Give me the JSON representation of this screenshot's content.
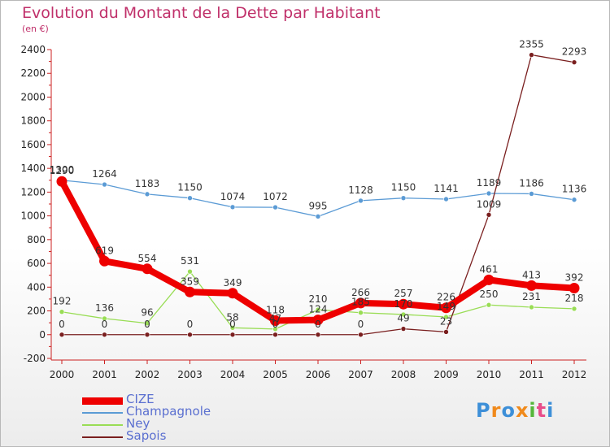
{
  "title": "Evolution du Montant de la Dette par Habitant",
  "subtitle": "(en €)",
  "logo_text": "Proxiti",
  "colors": {
    "title": "#c0306a",
    "axis": "#cc2222",
    "legend_text": "#5a6fd0"
  },
  "chart_data": {
    "type": "line",
    "title": "Evolution du Montant de la Dette par Habitant",
    "subtitle": "(en €)",
    "xlabel": "",
    "ylabel": "",
    "categories": [
      "2000",
      "2001",
      "2002",
      "2003",
      "2004",
      "2005",
      "2006",
      "2007",
      "2008",
      "2009",
      "2010",
      "2011",
      "2012"
    ],
    "ylim": [
      -200,
      2400
    ],
    "yticks": [
      -200,
      0,
      200,
      400,
      600,
      800,
      1000,
      1200,
      1400,
      1600,
      1800,
      2000,
      2200,
      2400
    ],
    "grid": false,
    "legend_position": "bottom-left",
    "series": [
      {
        "name": "CIZE",
        "color": "#ee0000",
        "values": [
          1290,
          619,
          554,
          359,
          349,
          118,
          124,
          266,
          257,
          226,
          461,
          413,
          392
        ],
        "labels": [
          "1290",
          "619",
          "554",
          "359",
          "349",
          "118",
          "124",
          "266",
          "257",
          "226",
          "461",
          "413",
          "392"
        ]
      },
      {
        "name": "Champagnole",
        "color": "#5b9bd5",
        "values": [
          1300,
          1264,
          1183,
          1150,
          1074,
          1072,
          995,
          1128,
          1150,
          1141,
          1189,
          1186,
          1136
        ],
        "labels": [
          "1300",
          "1264",
          "1183",
          "1150",
          "1074",
          "1072",
          "995",
          "1128",
          "1150",
          "1141",
          "1189",
          "1186",
          "1136"
        ]
      },
      {
        "name": "Ney",
        "color": "#99dd55",
        "values": [
          192,
          136,
          96,
          531,
          58,
          47,
          210,
          185,
          170,
          149,
          250,
          231,
          218
        ],
        "labels": [
          "192",
          "136",
          "96",
          "531",
          "58",
          "47",
          "210",
          "185",
          "170",
          "149",
          "250",
          "231",
          "218"
        ]
      },
      {
        "name": "Sapois",
        "color": "#7a1f1f",
        "values": [
          0,
          0,
          0,
          0,
          0,
          0,
          0,
          0,
          49,
          23,
          1009,
          2355,
          2293
        ],
        "labels": [
          "0",
          "0",
          "0",
          "0",
          "0",
          "0",
          "0",
          "0",
          "49",
          "23",
          "1009",
          "2355",
          "2293"
        ]
      }
    ]
  }
}
